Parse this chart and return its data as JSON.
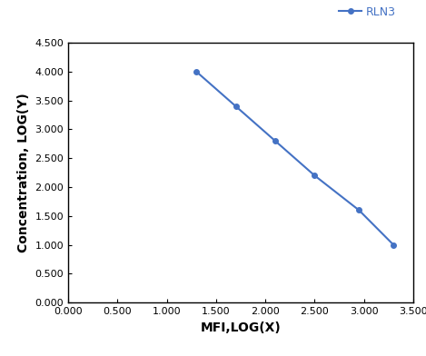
{
  "x": [
    1.3,
    1.7,
    2.1,
    2.5,
    2.95,
    3.3
  ],
  "y": [
    4.0,
    3.4,
    2.8,
    2.2,
    1.6,
    1.0
  ],
  "line_color": "#4472C4",
  "marker": "o",
  "marker_size": 4,
  "line_width": 1.5,
  "legend_label": "RLN3",
  "xlabel": "MFI,LOG(X)",
  "ylabel": "Concentration, LOG(Y)",
  "xlim": [
    0.0,
    3.5
  ],
  "ylim": [
    0.0,
    4.5
  ],
  "xticks": [
    0.0,
    0.5,
    1.0,
    1.5,
    2.0,
    2.5,
    3.0,
    3.5
  ],
  "yticks": [
    0.0,
    0.5,
    1.0,
    1.5,
    2.0,
    2.5,
    3.0,
    3.5,
    4.0,
    4.5
  ],
  "xtick_labels": [
    "0.000",
    "0.500",
    "1.000",
    "1.500",
    "2.000",
    "2.500",
    "3.000",
    "3.500"
  ],
  "ytick_labels": [
    "0.000",
    "0.500",
    "1.000",
    "1.500",
    "2.000",
    "2.500",
    "3.000",
    "3.500",
    "4.000",
    "4.500"
  ],
  "bg_color": "#FFFFFF",
  "spine_color": "#000000",
  "tick_color": "#000000",
  "label_fontsize": 10,
  "tick_fontsize": 8,
  "legend_fontsize": 9,
  "label_color": "#000000"
}
